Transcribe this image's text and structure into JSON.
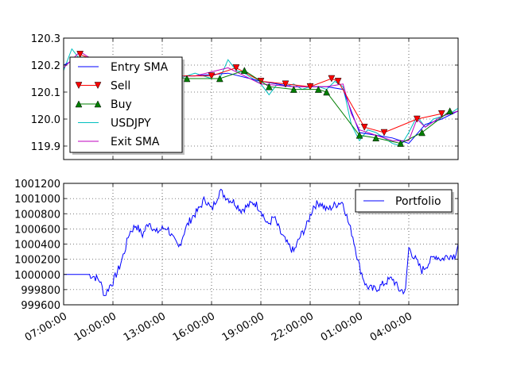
{
  "chart_data": [
    {
      "type": "line",
      "title": "",
      "xlabel": "",
      "ylabel": "",
      "ylim": [
        119.85,
        120.3
      ],
      "yticks": [
        "119.9",
        "120.0",
        "120.1",
        "120.2",
        "120.3"
      ],
      "xticks": [
        "07:00:00",
        "10:00:00",
        "13:00:00",
        "16:00:00",
        "19:00:00",
        "22:00:00",
        "01:00:00",
        "04:00:00"
      ],
      "grid": true,
      "legend_position": "upper left",
      "legend": [
        "Entry SMA",
        "Sell",
        "Buy",
        "USDJPY",
        "Exit SMA"
      ],
      "series": [
        {
          "name": "USDJPY",
          "color": "#00bfbf",
          "x": [
            0,
            0.5,
            1,
            1.5,
            2,
            2.5,
            3,
            3.5,
            4,
            4.5,
            5,
            5.5,
            6,
            6.5,
            7,
            7.5,
            8,
            8.5,
            9,
            9.5,
            10,
            10.5,
            11,
            11.5,
            12,
            12.5,
            13,
            13.5,
            14,
            14.5,
            15,
            15.5,
            16,
            16.5,
            17,
            17.5,
            18,
            18.5,
            19,
            19.5,
            20,
            20.5,
            21,
            21.5,
            22,
            22.5,
            23,
            23.5,
            24
          ],
          "values": [
            120.18,
            120.26,
            120.22,
            120.21,
            120.2,
            120.19,
            120.2,
            120.2,
            120.17,
            120.16,
            120.17,
            120.16,
            120.17,
            120.16,
            120.15,
            120.16,
            120.17,
            120.16,
            120.15,
            120.15,
            120.22,
            120.18,
            120.17,
            120.15,
            120.13,
            120.09,
            120.13,
            120.12,
            120.13,
            120.11,
            120.12,
            120.12,
            120.11,
            120.14,
            120.12,
            119.98,
            119.92,
            119.96,
            119.95,
            119.93,
            119.91,
            119.9,
            119.95,
            120.01,
            119.97,
            120.0,
            120.01,
            120.02,
            120.04
          ]
        },
        {
          "name": "Entry SMA",
          "color": "#0000ff",
          "x": [
            0,
            1,
            2,
            4,
            6,
            8,
            10,
            12,
            14,
            16,
            17,
            18,
            19,
            20,
            21,
            22,
            23,
            24
          ],
          "values": [
            120.2,
            120.23,
            120.21,
            120.18,
            120.16,
            120.16,
            120.17,
            120.14,
            120.12,
            120.12,
            120.11,
            119.95,
            119.94,
            119.93,
            119.91,
            119.98,
            120.0,
            120.03
          ]
        },
        {
          "name": "Exit SMA",
          "color": "#bf00bf",
          "x": [
            0,
            1,
            2,
            4,
            6,
            8,
            10,
            12,
            14,
            16,
            17,
            17.5,
            18,
            19,
            20,
            21,
            21.5,
            22,
            23,
            24
          ],
          "values": [
            120.19,
            120.25,
            120.21,
            120.17,
            120.16,
            120.16,
            120.19,
            120.13,
            120.12,
            120.12,
            120.13,
            120.02,
            119.96,
            119.94,
            119.92,
            119.92,
            120.0,
            119.97,
            120.01,
            120.03
          ]
        },
        {
          "name": "Sell",
          "color": "#ff0000",
          "marker": "triangle-down",
          "x": [
            1,
            3,
            5,
            7,
            9,
            10.5,
            12,
            13.5,
            15,
            16.3,
            16.7,
            18.3,
            19.5,
            21.5,
            23
          ],
          "values": [
            120.24,
            120.19,
            120.17,
            120.16,
            120.16,
            120.19,
            120.14,
            120.13,
            120.12,
            120.15,
            120.14,
            119.97,
            119.95,
            120.0,
            120.02
          ]
        },
        {
          "name": "Buy",
          "color": "#007f00",
          "marker": "triangle-up",
          "x": [
            1.5,
            3.5,
            5.5,
            7.5,
            9.5,
            11,
            12.5,
            14,
            15.5,
            16,
            18,
            19,
            20.5,
            21.8,
            23.5
          ],
          "values": [
            120.22,
            120.18,
            120.16,
            120.15,
            120.15,
            120.18,
            120.12,
            120.11,
            120.11,
            120.1,
            119.94,
            119.93,
            119.91,
            119.95,
            120.03
          ]
        }
      ]
    },
    {
      "type": "line",
      "title": "",
      "xlabel": "",
      "ylabel": "",
      "ylim": [
        999600,
        1001200
      ],
      "yticks": [
        "999600",
        "999800",
        "1000000",
        "1000200",
        "1000400",
        "1000600",
        "1000800",
        "1001000",
        "1001200"
      ],
      "xticks": [
        "07:00:00",
        "10:00:00",
        "13:00:00",
        "16:00:00",
        "19:00:00",
        "22:00:00",
        "01:00:00",
        "04:00:00"
      ],
      "grid": true,
      "legend_position": "upper right",
      "legend": [
        "Portfolio"
      ],
      "series": [
        {
          "name": "Portfolio",
          "color": "#0000ff",
          "x": [
            0,
            0.8,
            1.5,
            1.8,
            2.2,
            2.5,
            2.8,
            3.0,
            3.4,
            3.7,
            4.0,
            4.4,
            4.8,
            5.2,
            5.6,
            6.0,
            6.3,
            6.7,
            7.0,
            7.4,
            7.8,
            8.2,
            8.6,
            9.0,
            9.5,
            10.0,
            10.4,
            10.8,
            11.2,
            11.6,
            12.0,
            12.4,
            12.8,
            13.2,
            13.6,
            14.0,
            14.4,
            14.8,
            15.2,
            15.6,
            16.0,
            16.4,
            16.8,
            17.0,
            17.3,
            17.6,
            18.0,
            18.4,
            18.8,
            19.2,
            19.6,
            20.0,
            20.4,
            20.8,
            21.0,
            21.4,
            21.8,
            22.2,
            22.6,
            23.0,
            23.4,
            23.8,
            24
          ],
          "values": [
            1000000,
            1000000,
            1000000,
            999980,
            999920,
            999720,
            999850,
            999900,
            1000100,
            1000300,
            1000550,
            1000650,
            1000520,
            1000700,
            1000550,
            1000600,
            1000620,
            1000450,
            1000350,
            1000600,
            1000750,
            1000850,
            1001000,
            1000850,
            1001100,
            1001000,
            1000950,
            1000850,
            1000900,
            1000950,
            1000850,
            1000650,
            1000750,
            1000550,
            1000400,
            1000300,
            1000500,
            1000650,
            1000900,
            1000950,
            1000850,
            1000900,
            1000950,
            1000950,
            1000700,
            1000500,
            1000100,
            999850,
            999800,
            999830,
            999900,
            999950,
            999800,
            999780,
            1000350,
            1000200,
            1000050,
            1000150,
            1000250,
            1000200,
            1000250,
            1000250,
            1000400
          ]
        }
      ]
    }
  ]
}
